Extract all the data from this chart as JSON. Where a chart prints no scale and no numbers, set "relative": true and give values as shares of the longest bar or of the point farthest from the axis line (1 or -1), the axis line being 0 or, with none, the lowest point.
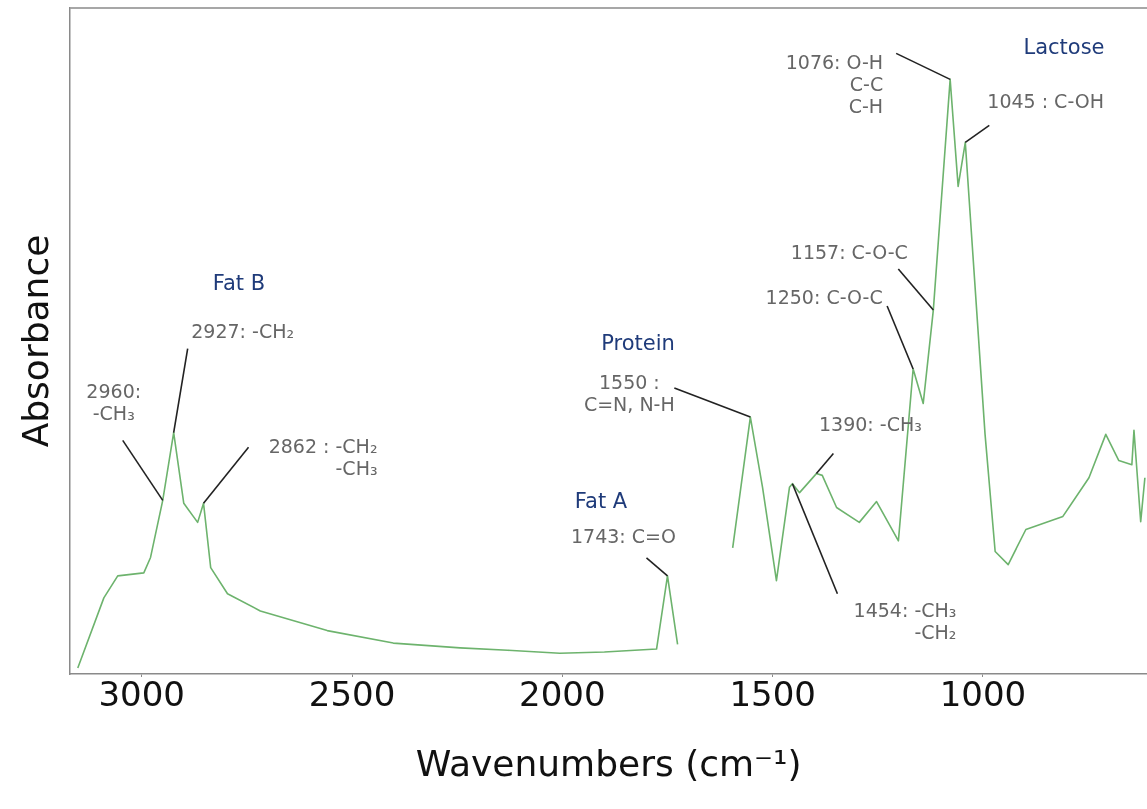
{
  "chart_data": {
    "type": "line",
    "xlabel": "Wavenumbers (cm⁻¹)",
    "ylabel": "Absorbance",
    "relative": true,
    "xlim": [
      3170,
      610
    ],
    "xticks": [
      3000,
      2500,
      2000,
      1500,
      1000
    ],
    "series": [
      {
        "color": "#6db36d",
        "x": [
          3152,
          3090,
          3057,
          2995,
          2979,
          2950,
          2924,
          2900,
          2867,
          2853,
          2836,
          2796,
          2718,
          2559,
          2402,
          2243,
          2130,
          2006,
          1900,
          1776,
          1750,
          1726
        ],
        "values": [
          0.01,
          0.128,
          0.165,
          0.17,
          0.196,
          0.292,
          0.406,
          0.287,
          0.255,
          0.287,
          0.179,
          0.135,
          0.106,
          0.073,
          0.052,
          0.044,
          0.04,
          0.035,
          0.037,
          0.042,
          0.165,
          0.05
        ]
      },
      {
        "color": "#6db36d",
        "x": [
          1595,
          1553,
          1524,
          1491,
          1460,
          1453,
          1436,
          1396,
          1382,
          1348,
          1294,
          1253,
          1201,
          1166,
          1142,
          1118,
          1078,
          1059,
          1042,
          995,
          971,
          940,
          898,
          810,
          748,
          708,
          677,
          646,
          641,
          625,
          615
        ],
        "values": [
          0.212,
          0.432,
          0.314,
          0.157,
          0.314,
          0.32,
          0.305,
          0.337,
          0.334,
          0.28,
          0.255,
          0.29,
          0.224,
          0.513,
          0.455,
          0.612,
          1.0,
          0.82,
          0.894,
          0.403,
          0.206,
          0.184,
          0.243,
          0.265,
          0.33,
          0.403,
          0.359,
          0.352,
          0.41,
          0.256,
          0.33
        ]
      }
    ],
    "annotations": [
      {
        "text": "2960:\n-CH₃",
        "x": 2950,
        "y": 0.292
      },
      "Fat B",
      {
        "text": "2927: -CH₂",
        "x": 2924,
        "y": 0.406
      },
      {
        "text": "2862 : -CH₂\n-CH₃",
        "x": 2853,
        "y": 0.287
      },
      "Protein",
      {
        "text": "1550 :\nC=N, N-H",
        "x": 1553,
        "y": 0.432
      },
      "Fat A",
      {
        "text": "1743: C=O",
        "x": 1750,
        "y": 0.165
      },
      {
        "text": "1454: -CH₃\n-CH₂",
        "x": 1453,
        "y": 0.32
      },
      {
        "text": "1390: -CH₃",
        "x": 1396,
        "y": 0.337
      },
      {
        "text": "1250: C-O-C",
        "x": 1166,
        "y": 0.513
      },
      {
        "text": "1157: C-O-C",
        "x": 1118,
        "y": 0.612
      },
      {
        "text": "1076: O-H\nC-C\nC-H",
        "x": 1078,
        "y": 1.0
      },
      "Lactose",
      {
        "text": "1045 : C-OH",
        "x": 1042,
        "y": 0.894
      }
    ]
  }
}
